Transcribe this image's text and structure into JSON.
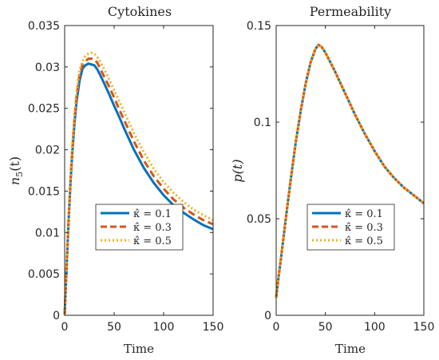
{
  "chart_data": [
    {
      "type": "line",
      "title": "Cytokines",
      "xlabel": "Time",
      "ylabel": "n5(t)",
      "ylabel_parts": {
        "var": "n",
        "sub": "5",
        "arg": "(t)"
      },
      "xlim": [
        0,
        150
      ],
      "ylim": [
        0,
        0.035
      ],
      "xticks": [
        "0",
        "50",
        "100",
        "150"
      ],
      "yticks": [
        "0",
        "0.005",
        "0.01",
        "0.015",
        "0.02",
        "0.025",
        "0.03",
        "0.035"
      ],
      "grid": false,
      "legend_position": "bottom-right",
      "series": [
        {
          "name": "κ̂ = 0.1",
          "color": "#0072BD",
          "style": "solid",
          "x": [
            0,
            2,
            4,
            6,
            8,
            10,
            12,
            15,
            18,
            21,
            24,
            27,
            30,
            33,
            36,
            40,
            45,
            50,
            55,
            60,
            70,
            80,
            90,
            100,
            110,
            120,
            130,
            140,
            150
          ],
          "y": [
            0,
            0.0058,
            0.0114,
            0.0162,
            0.0201,
            0.0233,
            0.0258,
            0.0283,
            0.0298,
            0.0302,
            0.0304,
            0.0303,
            0.0302,
            0.0297,
            0.029,
            0.028,
            0.0267,
            0.0253,
            0.024,
            0.0226,
            0.02,
            0.0178,
            0.016,
            0.0145,
            0.0133,
            0.0124,
            0.0116,
            0.0109,
            0.0104
          ]
        },
        {
          "name": "κ̂ = 0.3",
          "color": "#D95319",
          "style": "dashed",
          "x": [
            0,
            2,
            4,
            6,
            8,
            10,
            12,
            15,
            18,
            21,
            24,
            27,
            30,
            33,
            36,
            40,
            45,
            50,
            55,
            60,
            70,
            80,
            90,
            100,
            110,
            120,
            130,
            140,
            150
          ],
          "y": [
            0,
            0.006,
            0.0116,
            0.0165,
            0.0205,
            0.0238,
            0.0264,
            0.029,
            0.0303,
            0.0307,
            0.031,
            0.031,
            0.0309,
            0.0305,
            0.0298,
            0.0288,
            0.0276,
            0.0263,
            0.0249,
            0.0236,
            0.021,
            0.0187,
            0.0168,
            0.0153,
            0.014,
            0.013,
            0.0122,
            0.0115,
            0.011
          ]
        },
        {
          "name": "κ̂ = 0.5",
          "color": "#EDB120",
          "style": "dotted",
          "x": [
            0,
            2,
            4,
            6,
            8,
            10,
            12,
            15,
            18,
            21,
            24,
            27,
            30,
            33,
            36,
            40,
            45,
            50,
            55,
            60,
            70,
            80,
            90,
            100,
            110,
            120,
            130,
            140,
            150
          ],
          "y": [
            0,
            0.0062,
            0.0118,
            0.0168,
            0.0209,
            0.0242,
            0.0269,
            0.0296,
            0.0307,
            0.0313,
            0.0316,
            0.0317,
            0.0316,
            0.0312,
            0.0306,
            0.0297,
            0.0285,
            0.0272,
            0.0259,
            0.0246,
            0.022,
            0.0197,
            0.0177,
            0.0161,
            0.0148,
            0.0137,
            0.0128,
            0.0121,
            0.0115
          ]
        }
      ]
    },
    {
      "type": "line",
      "title": "Permeability",
      "xlabel": "Time",
      "ylabel": "p(t)",
      "xlim": [
        0,
        150
      ],
      "ylim": [
        0,
        0.15
      ],
      "xticks": [
        "0",
        "50",
        "100",
        "150"
      ],
      "yticks": [
        "0",
        "0.05",
        "0.1",
        "0.15"
      ],
      "grid": false,
      "legend_position": "bottom-right",
      "series": [
        {
          "name": "κ̂ = 0.1",
          "color": "#0072BD",
          "style": "solid",
          "x": [
            0,
            2,
            5,
            10,
            15,
            20,
            25,
            30,
            35,
            40,
            43,
            46,
            50,
            55,
            60,
            70,
            80,
            90,
            100,
            110,
            120,
            130,
            140,
            150
          ],
          "y": [
            0.009,
            0.018,
            0.03,
            0.051,
            0.071,
            0.09,
            0.106,
            0.12,
            0.131,
            0.138,
            0.14,
            0.139,
            0.136,
            0.131,
            0.126,
            0.115,
            0.104,
            0.094,
            0.085,
            0.077,
            0.071,
            0.066,
            0.062,
            0.058
          ]
        },
        {
          "name": "κ̂ = 0.3",
          "color": "#D95319",
          "style": "dashed",
          "x": [
            0,
            2,
            5,
            10,
            15,
            20,
            25,
            30,
            35,
            40,
            43,
            46,
            50,
            55,
            60,
            70,
            80,
            90,
            100,
            110,
            120,
            130,
            140,
            150
          ],
          "y": [
            0.009,
            0.018,
            0.03,
            0.051,
            0.071,
            0.09,
            0.106,
            0.12,
            0.131,
            0.138,
            0.14,
            0.139,
            0.136,
            0.131,
            0.126,
            0.115,
            0.104,
            0.094,
            0.085,
            0.077,
            0.071,
            0.066,
            0.062,
            0.058
          ]
        },
        {
          "name": "κ̂ = 0.5",
          "color": "#EDB120",
          "style": "dotted",
          "x": [
            0,
            2,
            5,
            10,
            15,
            20,
            25,
            30,
            35,
            40,
            43,
            46,
            50,
            55,
            60,
            70,
            80,
            90,
            100,
            110,
            120,
            130,
            140,
            150
          ],
          "y": [
            0.009,
            0.018,
            0.03,
            0.051,
            0.071,
            0.09,
            0.106,
            0.12,
            0.131,
            0.138,
            0.14,
            0.139,
            0.136,
            0.131,
            0.126,
            0.115,
            0.104,
            0.094,
            0.085,
            0.077,
            0.071,
            0.066,
            0.062,
            0.058
          ]
        }
      ]
    }
  ]
}
